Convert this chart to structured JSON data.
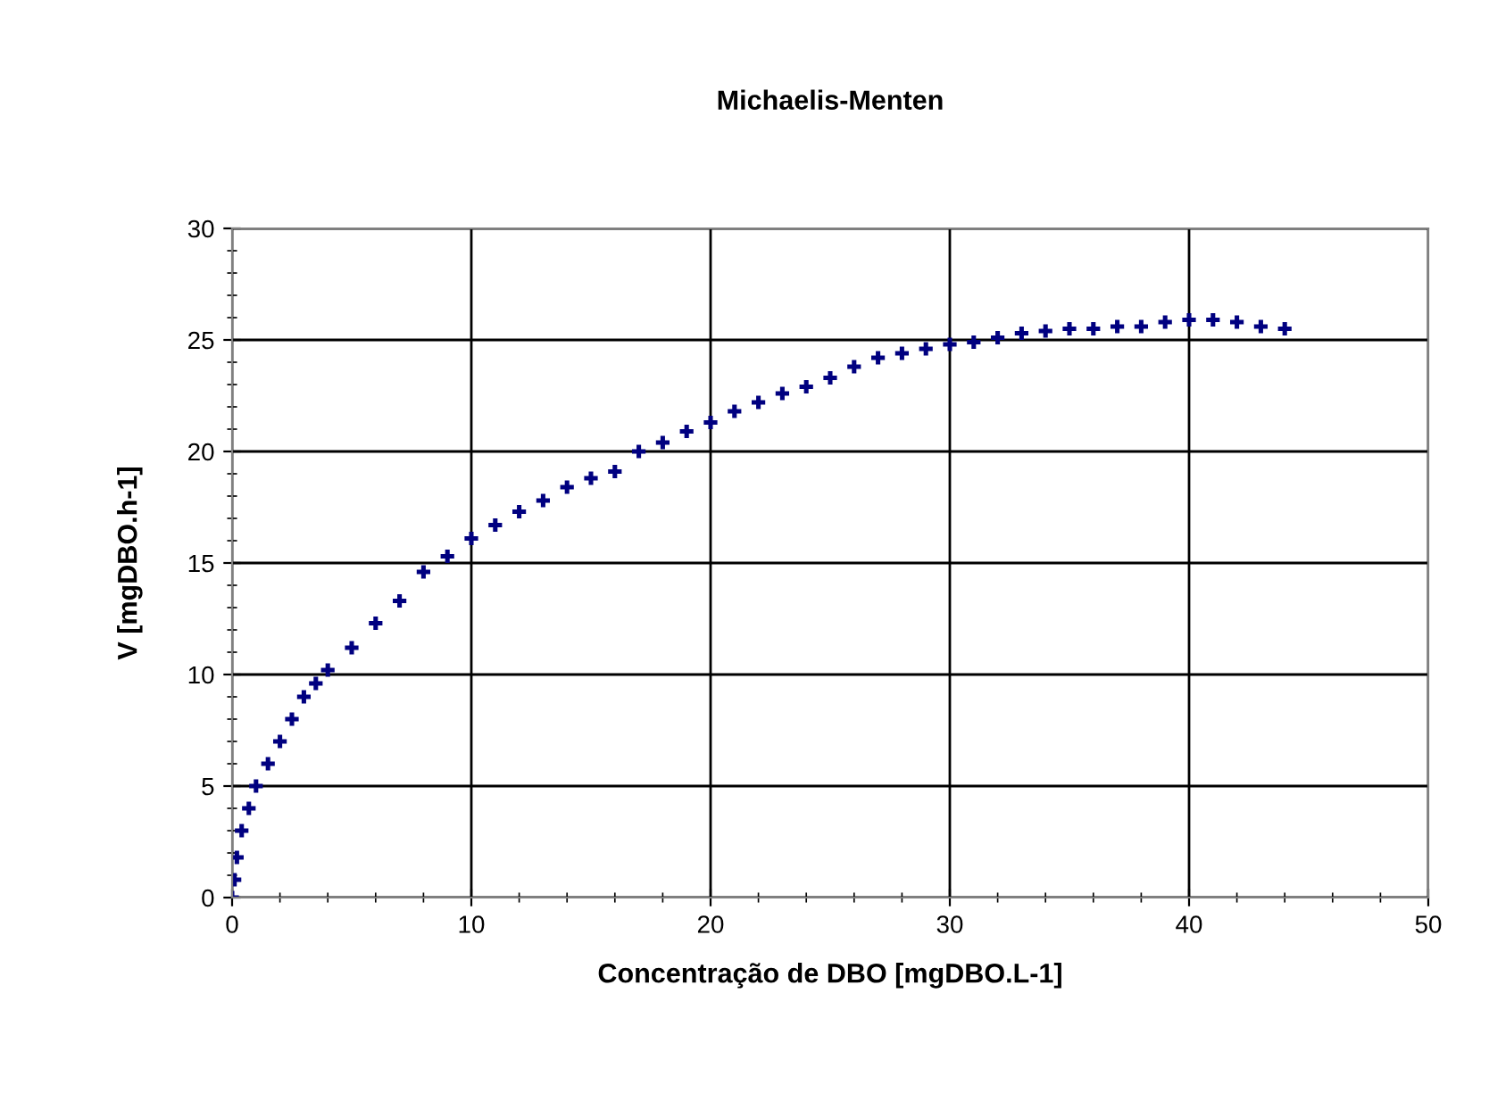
{
  "chart_data": {
    "type": "scatter",
    "title": "Michaelis-Menten",
    "xlabel": "Concentração de DBO [mgDBO.L-1]",
    "ylabel": "V [mgDBO.h-1]",
    "x": [
      0,
      0.1,
      0.2,
      0.4,
      0.7,
      1,
      1.5,
      2,
      2.5,
      3,
      3.5,
      4,
      5,
      6,
      7,
      8,
      9,
      10,
      11,
      12,
      13,
      14,
      15,
      16,
      17,
      18,
      19,
      20,
      21,
      22,
      23,
      24,
      25,
      26,
      27,
      28,
      29,
      30,
      31,
      32,
      33,
      34,
      35,
      36,
      37,
      38,
      39,
      40,
      41,
      42,
      43,
      44
    ],
    "series": [
      {
        "color": "#000080",
        "values": [
          0,
          0.8,
          1.8,
          3,
          4,
          5,
          6,
          7,
          8,
          9,
          9.6,
          10.2,
          11.2,
          12.3,
          13.3,
          14.6,
          15.3,
          16.1,
          16.7,
          17.3,
          17.8,
          18.4,
          18.8,
          19.1,
          20,
          20.4,
          20.9,
          21.3,
          21.8,
          22.2,
          22.6,
          22.9,
          23.3,
          23.8,
          24.2,
          24.4,
          24.6,
          24.8,
          24.9,
          25.1,
          25.3,
          25.4,
          25.5,
          25.5,
          25.6,
          25.6,
          25.8,
          25.9,
          25.9,
          25.8,
          25.6,
          25.5
        ]
      }
    ],
    "marker": "cross",
    "xlim": [
      0,
      50
    ],
    "ylim": [
      0,
      30
    ],
    "xticks": [
      0,
      10,
      20,
      30,
      40,
      50
    ],
    "yticks": [
      0,
      5,
      10,
      15,
      20,
      25,
      30
    ],
    "grid": true,
    "legend": false
  }
}
